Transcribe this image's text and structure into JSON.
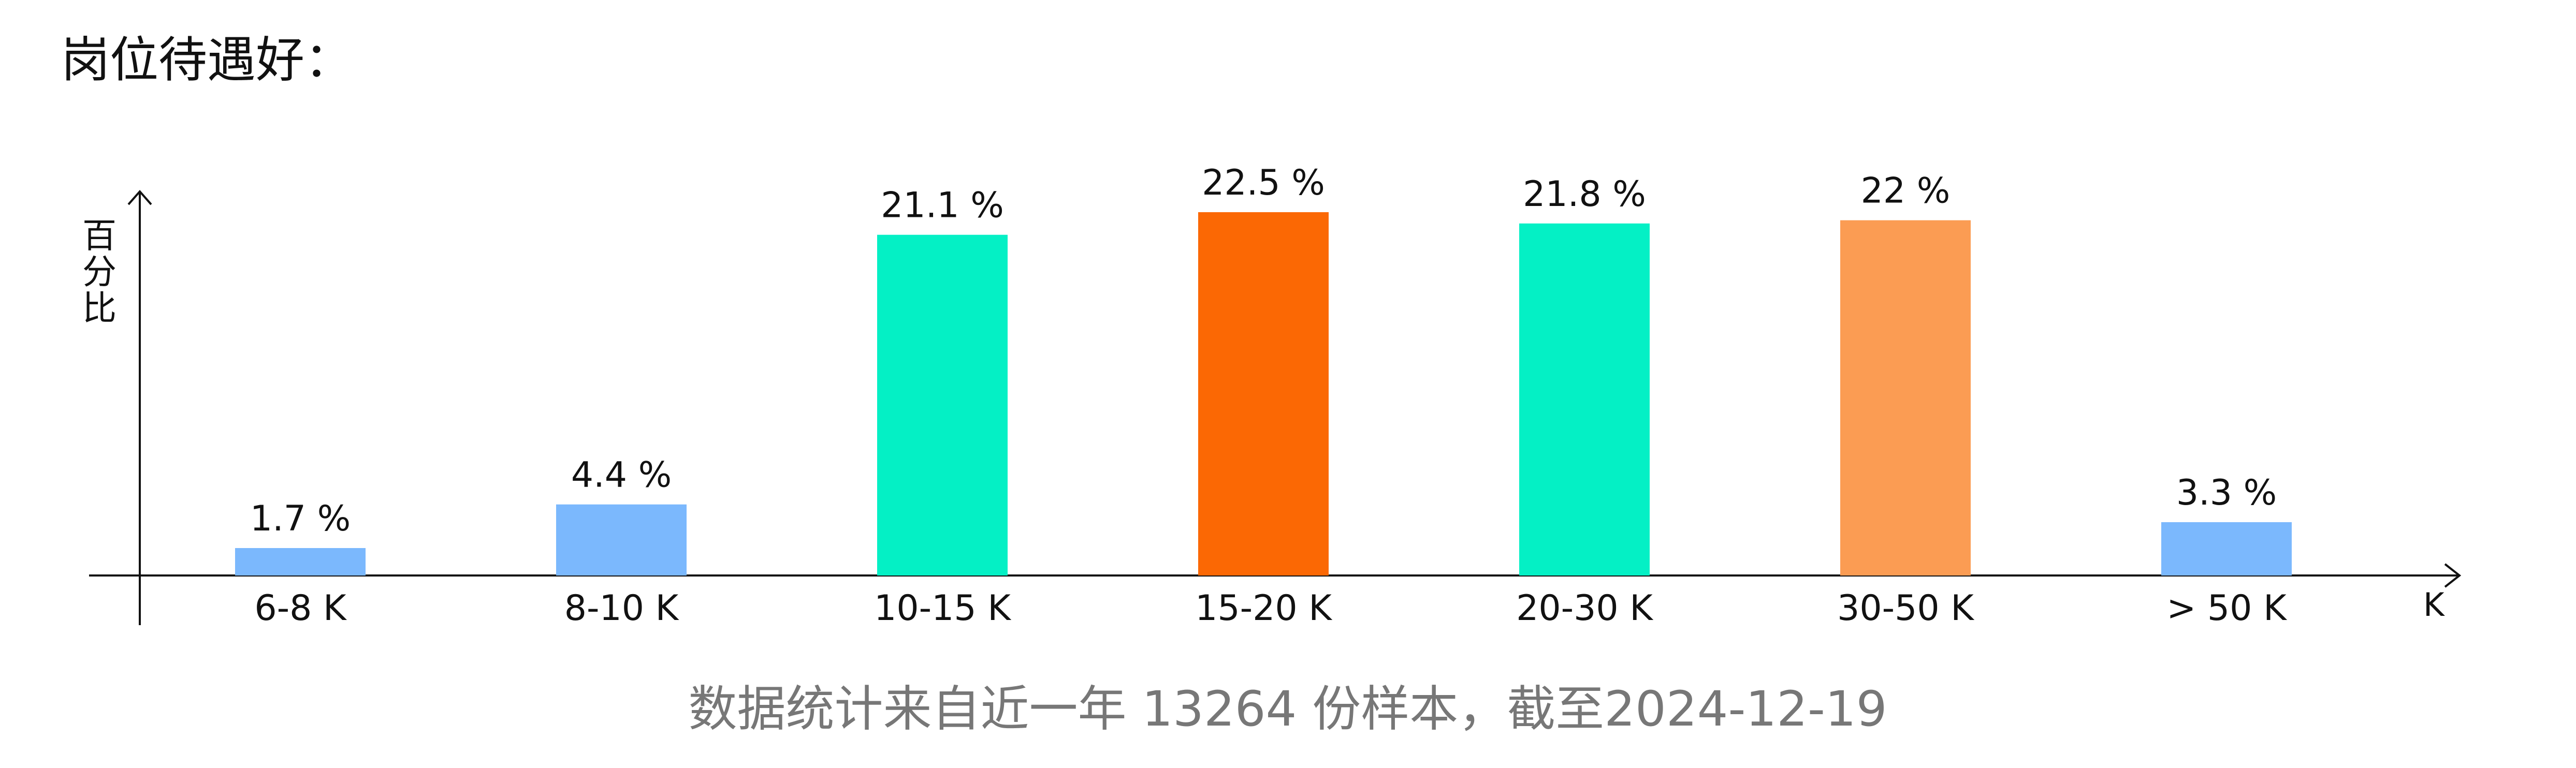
{
  "page": {
    "title": "岗位待遇好：",
    "footer": "数据统计来自近一年 13264 份样本，截至2024-12-19"
  },
  "chart_data": {
    "type": "bar",
    "title": "岗位待遇好：",
    "ylabel": "百分比",
    "xlabel": "K",
    "categories": [
      "6-8 K",
      "8-10 K",
      "10-15 K",
      "15-20 K",
      "20-30 K",
      "30-50 K",
      "> 50 K"
    ],
    "values": [
      1.7,
      4.4,
      21.1,
      22.5,
      21.8,
      22,
      3.3
    ],
    "labels": [
      "1.7 %",
      "4.4 %",
      "21.1 %",
      "22.5 %",
      "21.8 %",
      "22 %",
      "3.3 %"
    ],
    "colors": [
      "#7bb8fd",
      "#7bb8fd",
      "#04f0c5",
      "#fb6804",
      "#04f0c5",
      "#fb9c53",
      "#7bb8fd"
    ],
    "ylim": [
      0,
      22.5
    ],
    "grid": false,
    "legend": "none"
  }
}
